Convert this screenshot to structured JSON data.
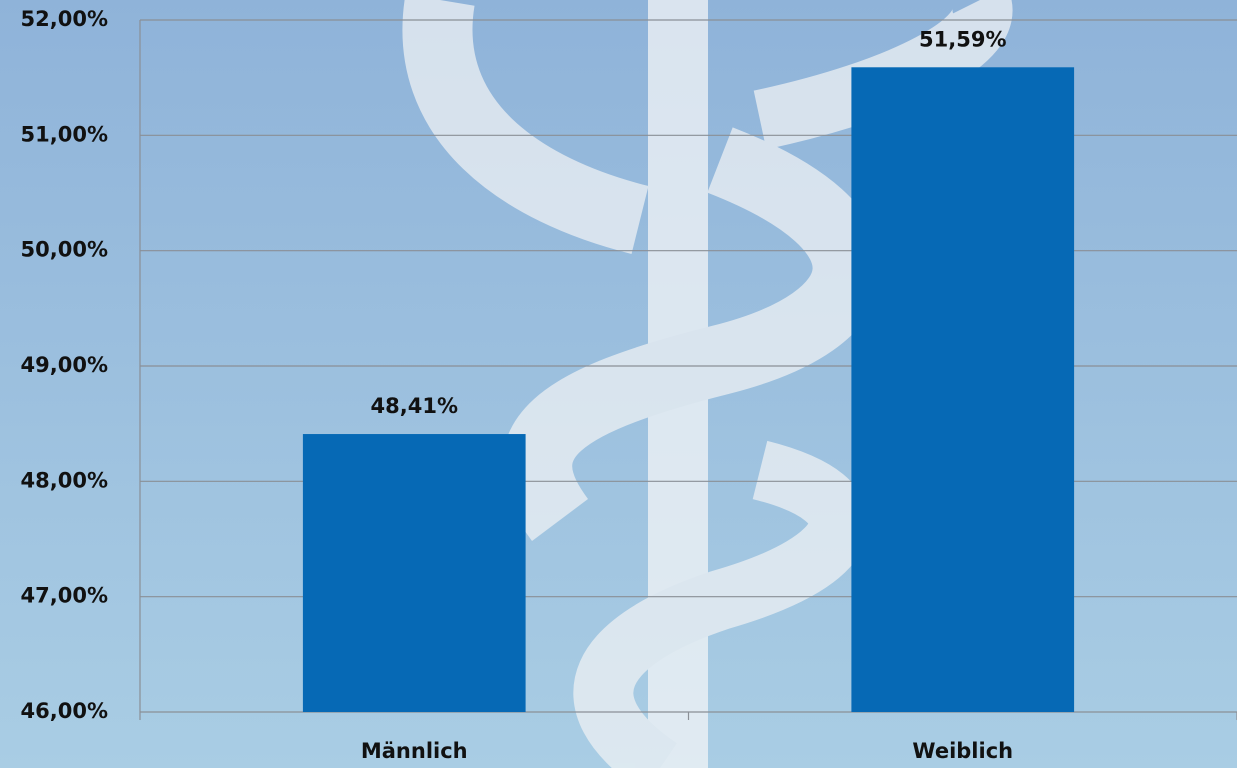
{
  "chart_data": {
    "type": "bar",
    "categories": [
      "Männlich",
      "Weiblich"
    ],
    "values": [
      48.41,
      51.59
    ],
    "value_labels": [
      "48,41%",
      "51,59%"
    ],
    "color": "#0669b5",
    "ylim": [
      46,
      52
    ],
    "yticks": [
      {
        "value": 46,
        "label": "46,00%"
      },
      {
        "value": 47,
        "label": "47,00%"
      },
      {
        "value": 48,
        "label": "48,00%"
      },
      {
        "value": 49,
        "label": "49,00%"
      },
      {
        "value": 50,
        "label": "50,00%"
      },
      {
        "value": 51,
        "label": "51,00%"
      },
      {
        "value": 52,
        "label": "52,00%"
      }
    ],
    "grid": true
  }
}
